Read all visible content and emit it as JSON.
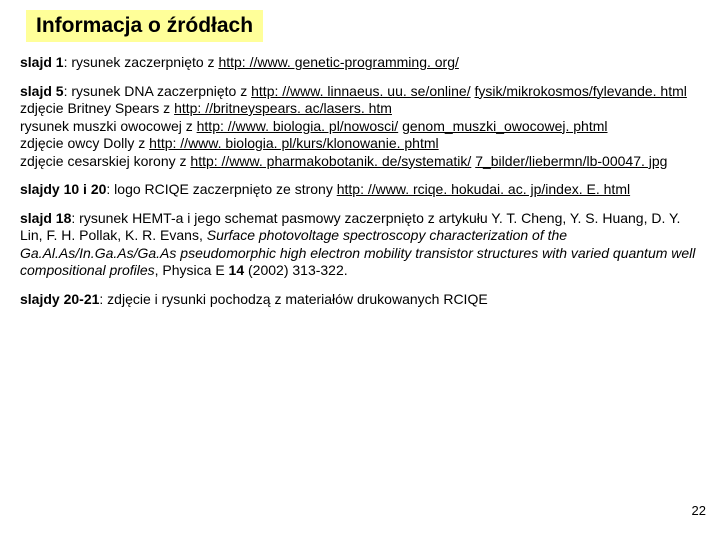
{
  "title": "Informacja o źródłach",
  "page_number": "22",
  "paragraphs": [
    {
      "runs": [
        {
          "t": "slajd 1",
          "b": true
        },
        {
          "t": ": rysunek zaczerpnięto z "
        },
        {
          "t": "http: //www. genetic-programming. org/",
          "u": true
        }
      ]
    },
    {
      "runs": [
        {
          "t": "slajd 5",
          "b": true
        },
        {
          "t": ": rysunek DNA zaczerpnięto z "
        },
        {
          "t": "http: //www. linnaeus. uu. se/online/",
          "u": true
        },
        {
          "t": " "
        },
        {
          "t": "fysik/mikrokosmos/fylevande. html",
          "u": true
        },
        {
          "br": true
        },
        {
          "t": "zdjęcie Britney Spears z "
        },
        {
          "t": "http: //britneyspears. ac/lasers. htm",
          "u": true
        },
        {
          "br": true
        },
        {
          "t": "rysunek muszki owocowej z "
        },
        {
          "t": "http: //www. biologia. pl/nowosci/",
          "u": true
        },
        {
          "t": " "
        },
        {
          "t": "genom_muszki_owocowej. phtml",
          "u": true
        },
        {
          "br": true
        },
        {
          "t": "zdjęcie owcy Dolly z "
        },
        {
          "t": "http: //www. biologia. pl/kurs/klonowanie. phtml",
          "u": true
        },
        {
          "br": true
        },
        {
          "t": "zdjęcie cesarskiej korony z "
        },
        {
          "t": "http: //www. pharmakobotanik. de/systematik/",
          "u": true
        },
        {
          "t": " "
        },
        {
          "t": "7_bilder/liebermn/lb-00047. jpg",
          "u": true
        }
      ]
    },
    {
      "runs": [
        {
          "t": "slajdy 10 i 20",
          "b": true
        },
        {
          "t": ": logo RCIQE zaczerpnięto ze strony "
        },
        {
          "t": "http: //www. rciqe. hokudai. ac. jp/index. E. html",
          "u": true
        }
      ]
    },
    {
      "runs": [
        {
          "t": "slajd 18",
          "b": true
        },
        {
          "t": ": rysunek HEMT-a i jego schemat pasmowy zaczerpnięto z artykułu Y. T. Cheng, Y. S. Huang, D. Y. Lin, F. H. Pollak, K. R. Evans, "
        },
        {
          "t": "Surface photovoltage spectroscopy characterization of the Ga.Al.As/In.Ga.As/Ga.As pseudomorphic high electron mobility transistor structures with varied quantum well compositional profiles",
          "i": true
        },
        {
          "t": ", Physica E "
        },
        {
          "t": "14",
          "b": true
        },
        {
          "t": " (2002) 313-322."
        }
      ]
    },
    {
      "runs": [
        {
          "t": "slajdy 20-21",
          "b": true
        },
        {
          "t": ": zdjęcie i rysunki pochodzą z materiałów drukowanych RCIQE"
        }
      ]
    }
  ]
}
